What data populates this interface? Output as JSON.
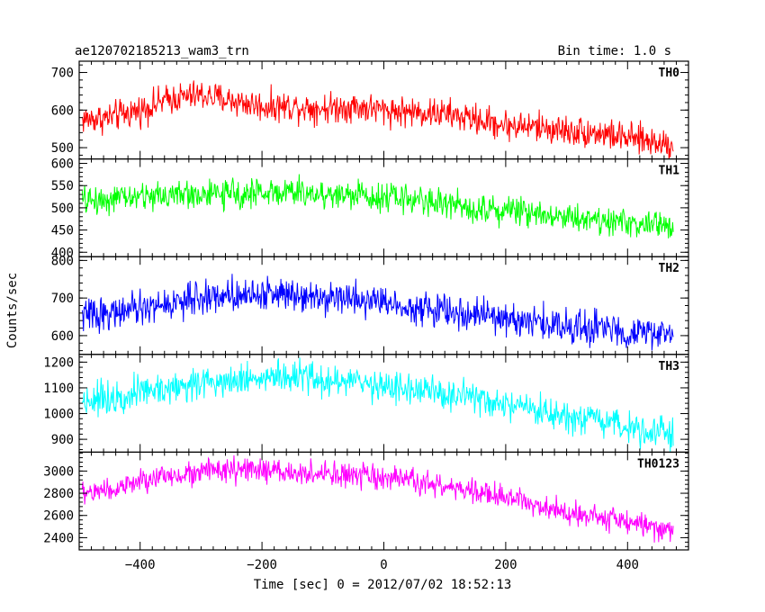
{
  "header": {
    "title": "ae120702185213_wam3_trn",
    "bin_time": "Bin time: 1.0 s"
  },
  "axes": {
    "xlabel": "Time [sec] 0 = 2012/07/02 18:52:13",
    "ylabel": "Counts/sec"
  },
  "chart_data": {
    "type": "line",
    "title": "ae120702185213_wam3_trn",
    "xlabel": "Time [sec] 0 = 2012/07/02 18:52:13",
    "ylabel": "Counts/sec",
    "xlim": [
      -500,
      500
    ],
    "xticks": [
      -400,
      -200,
      0,
      200,
      400
    ],
    "x_tick_labels": [
      "−400",
      "−200",
      "0",
      "200",
      "400"
    ],
    "x_sample_range": [
      -495,
      475
    ],
    "bin_time_s": 1.0,
    "grid": false,
    "series": [
      {
        "name": "TH0",
        "color": "#ff0000",
        "ylim": [
          470,
          730
        ],
        "yticks": [
          500,
          600,
          700
        ],
        "y_tick_labels": [
          "500",
          "600",
          "700"
        ],
        "noise_amplitude": 35,
        "trend": {
          "x": [
            -495,
            -450,
            -400,
            -350,
            -300,
            -250,
            -200,
            -150,
            -100,
            -50,
            0,
            50,
            100,
            150,
            200,
            250,
            300,
            350,
            400,
            450,
            475
          ],
          "y": [
            575,
            580,
            600,
            630,
            640,
            625,
            610,
            610,
            605,
            610,
            600,
            595,
            590,
            575,
            560,
            555,
            545,
            540,
            525,
            515,
            510
          ]
        }
      },
      {
        "name": "TH1",
        "color": "#00ff00",
        "ylim": [
          390,
          610
        ],
        "yticks": [
          400,
          450,
          500,
          550,
          600
        ],
        "y_tick_labels": [
          "400",
          "450",
          "500",
          "550",
          "600"
        ],
        "noise_amplitude": 28,
        "trend": {
          "x": [
            -495,
            -450,
            -400,
            -350,
            -300,
            -250,
            -200,
            -150,
            -100,
            -50,
            0,
            50,
            100,
            150,
            200,
            250,
            300,
            350,
            400,
            450,
            475
          ],
          "y": [
            515,
            520,
            525,
            530,
            530,
            530,
            535,
            535,
            530,
            530,
            525,
            520,
            510,
            500,
            495,
            490,
            480,
            475,
            465,
            460,
            455
          ]
        }
      },
      {
        "name": "TH2",
        "color": "#0000ff",
        "ylim": [
          550,
          810
        ],
        "yticks": [
          600,
          700,
          800
        ],
        "y_tick_labels": [
          "600",
          "700",
          "800"
        ],
        "noise_amplitude": 38,
        "trend": {
          "x": [
            -495,
            -450,
            -400,
            -350,
            -300,
            -250,
            -200,
            -150,
            -100,
            -50,
            0,
            50,
            100,
            150,
            200,
            250,
            300,
            350,
            400,
            450,
            475
          ],
          "y": [
            655,
            660,
            670,
            685,
            700,
            710,
            710,
            715,
            705,
            700,
            690,
            675,
            665,
            655,
            645,
            635,
            625,
            620,
            610,
            605,
            600
          ]
        }
      },
      {
        "name": "TH3",
        "color": "#00ffff",
        "ylim": [
          850,
          1230
        ],
        "yticks": [
          900,
          1000,
          1100,
          1200
        ],
        "y_tick_labels": [
          "900",
          "1000",
          "1100",
          "1200"
        ],
        "noise_amplitude": 55,
        "trend": {
          "x": [
            -495,
            -450,
            -400,
            -350,
            -300,
            -250,
            -200,
            -150,
            -100,
            -50,
            0,
            50,
            100,
            150,
            200,
            250,
            300,
            350,
            400,
            450,
            475
          ],
          "y": [
            1050,
            1065,
            1085,
            1100,
            1120,
            1135,
            1140,
            1140,
            1130,
            1120,
            1110,
            1090,
            1075,
            1055,
            1030,
            1005,
            980,
            965,
            950,
            935,
            930
          ]
        }
      },
      {
        "name": "TH0123",
        "color": "#ff00ff",
        "ylim": [
          2290,
          3170
        ],
        "yticks": [
          2400,
          2600,
          2800,
          3000
        ],
        "y_tick_labels": [
          "2400",
          "2600",
          "2800",
          "3000"
        ],
        "noise_amplitude": 95,
        "trend": {
          "x": [
            -495,
            -450,
            -400,
            -350,
            -300,
            -250,
            -200,
            -150,
            -100,
            -50,
            0,
            50,
            100,
            150,
            200,
            250,
            300,
            350,
            400,
            450,
            475
          ],
          "y": [
            2800,
            2830,
            2900,
            2960,
            3000,
            3005,
            3000,
            2985,
            2970,
            2955,
            2935,
            2905,
            2860,
            2810,
            2760,
            2700,
            2640,
            2590,
            2540,
            2490,
            2470
          ]
        }
      }
    ]
  }
}
